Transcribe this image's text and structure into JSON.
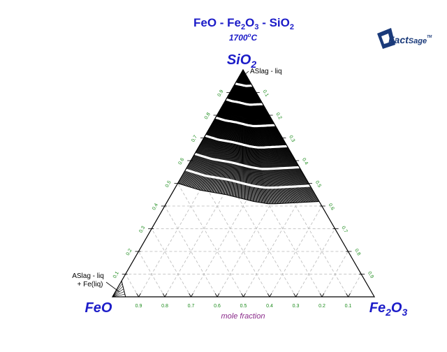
{
  "chart_data": {
    "type": "ternary",
    "title": "FeO - Fe2O3 - SiO2",
    "temperature": "1700",
    "temperature_unit": "°C",
    "vertices": {
      "top": "SiO2",
      "left": "FeO",
      "right": "Fe2O3"
    },
    "axis_title": "mole fraction",
    "tick_values": [
      0.1,
      0.2,
      0.3,
      0.4,
      0.5,
      0.6,
      0.7,
      0.8,
      0.9
    ],
    "tick_labels": [
      "0.1",
      "0.2",
      "0.3",
      "0.4",
      "0.5",
      "0.6",
      "0.7",
      "0.8",
      "0.9"
    ],
    "grid": true,
    "regions": [
      {
        "label": "ASlag - liq",
        "boundary": [
          {
            "FeO": 0.0,
            "Fe2O3": 0.0,
            "SiO2": 1.0
          },
          {
            "FeO": 0.5,
            "Fe2O3": 0.0,
            "SiO2": 0.5
          },
          {
            "FeO": 0.43,
            "Fe2O3": 0.1,
            "SiO2": 0.47
          },
          {
            "FeO": 0.34,
            "Fe2O3": 0.21,
            "SiO2": 0.45
          },
          {
            "FeO": 0.25,
            "Fe2O3": 0.33,
            "SiO2": 0.42
          },
          {
            "FeO": 0.2,
            "Fe2O3": 0.39,
            "SiO2": 0.41
          },
          {
            "FeO": 0.17,
            "Fe2O3": 0.42,
            "SiO2": 0.41
          },
          {
            "FeO": 0.0,
            "Fe2O3": 0.58,
            "SiO2": 0.42
          }
        ]
      },
      {
        "label": "ASlag - liq\n+ Fe(liq)",
        "boundary": [
          {
            "FeO": 1.0,
            "Fe2O3": 0.0,
            "SiO2": 0.0
          },
          {
            "FeO": 0.95,
            "Fe2O3": 0.05,
            "SiO2": 0.0
          },
          {
            "FeO": 0.93,
            "Fe2O3": 0.0,
            "SiO2": 0.07
          }
        ]
      }
    ],
    "colors": {
      "title": "#1c1cc8",
      "vertex": "#1c1cc8",
      "ticks": "#1a8a1a",
      "axis_title": "#8a2a8a",
      "grid": "#b8b8b8"
    }
  },
  "labels": {
    "region_top": "ASlag - liq",
    "region_bottom_line1": "ASlag - liq",
    "region_bottom_line2": "+ Fe(liq)"
  },
  "logo": {
    "text": "FactSage",
    "mark": "TM"
  }
}
